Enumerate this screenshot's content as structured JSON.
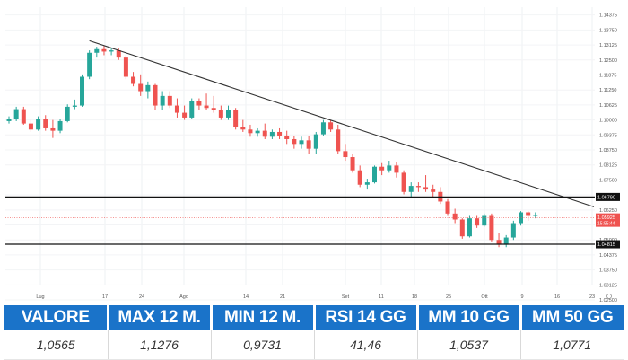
{
  "chart_data": {
    "type": "candlestick",
    "x_tick_labels": [
      "Lug",
      "17",
      "24",
      "Ago",
      "14",
      "21",
      "Set",
      "11",
      "18",
      "25",
      "Ott",
      "9",
      "16",
      "23"
    ],
    "y_tick_labels": [
      "1.14375",
      "1.13750",
      "1.13125",
      "1.12500",
      "1.11875",
      "1.11250",
      "1.10625",
      "1.10000",
      "1.09375",
      "1.08750",
      "1.08125",
      "1.07500",
      "1.06875",
      "1.06250",
      "1.05625",
      "1.05000",
      "1.04375",
      "1.03750",
      "1.03125",
      "1.02500"
    ],
    "ylim": [
      1.031,
      1.147
    ],
    "candles": [
      {
        "o": 1.0995,
        "h": 1.1015,
        "l": 1.0985,
        "c": 1.1005
      },
      {
        "o": 1.1005,
        "h": 1.1055,
        "l": 1.0995,
        "c": 1.1045
      },
      {
        "o": 1.1045,
        "h": 1.1055,
        "l": 1.098,
        "c": 1.0985
      },
      {
        "o": 1.0985,
        "h": 1.1,
        "l": 1.095,
        "c": 1.096
      },
      {
        "o": 1.096,
        "h": 1.1015,
        "l": 1.0955,
        "c": 1.1005
      },
      {
        "o": 1.1005,
        "h": 1.102,
        "l": 1.0955,
        "c": 1.0965
      },
      {
        "o": 1.0965,
        "h": 1.1,
        "l": 1.0925,
        "c": 1.0955
      },
      {
        "o": 1.0955,
        "h": 1.1005,
        "l": 1.0945,
        "c": 1.0995
      },
      {
        "o": 1.0995,
        "h": 1.1065,
        "l": 1.099,
        "c": 1.1055
      },
      {
        "o": 1.1055,
        "h": 1.1085,
        "l": 1.1045,
        "c": 1.106
      },
      {
        "o": 1.106,
        "h": 1.119,
        "l": 1.1055,
        "c": 1.118
      },
      {
        "o": 1.118,
        "h": 1.129,
        "l": 1.117,
        "c": 1.128
      },
      {
        "o": 1.128,
        "h": 1.1305,
        "l": 1.126,
        "c": 1.1295
      },
      {
        "o": 1.1295,
        "h": 1.131,
        "l": 1.127,
        "c": 1.1285
      },
      {
        "o": 1.1285,
        "h": 1.13,
        "l": 1.127,
        "c": 1.129
      },
      {
        "o": 1.129,
        "h": 1.13,
        "l": 1.125,
        "c": 1.126
      },
      {
        "o": 1.126,
        "h": 1.127,
        "l": 1.117,
        "c": 1.118
      },
      {
        "o": 1.118,
        "h": 1.12,
        "l": 1.114,
        "c": 1.115
      },
      {
        "o": 1.115,
        "h": 1.119,
        "l": 1.11,
        "c": 1.112
      },
      {
        "o": 1.112,
        "h": 1.116,
        "l": 1.109,
        "c": 1.1145
      },
      {
        "o": 1.1145,
        "h": 1.115,
        "l": 1.104,
        "c": 1.106
      },
      {
        "o": 1.106,
        "h": 1.112,
        "l": 1.104,
        "c": 1.11
      },
      {
        "o": 1.11,
        "h": 1.112,
        "l": 1.105,
        "c": 1.106
      },
      {
        "o": 1.106,
        "h": 1.109,
        "l": 1.101,
        "c": 1.103
      },
      {
        "o": 1.103,
        "h": 1.106,
        "l": 1.1,
        "c": 1.101
      },
      {
        "o": 1.101,
        "h": 1.109,
        "l": 1.1005,
        "c": 1.108
      },
      {
        "o": 1.108,
        "h": 1.109,
        "l": 1.104,
        "c": 1.106
      },
      {
        "o": 1.106,
        "h": 1.111,
        "l": 1.104,
        "c": 1.105
      },
      {
        "o": 1.105,
        "h": 1.11,
        "l": 1.103,
        "c": 1.104
      },
      {
        "o": 1.104,
        "h": 1.106,
        "l": 1.1,
        "c": 1.101
      },
      {
        "o": 1.101,
        "h": 1.106,
        "l": 1.1,
        "c": 1.104
      },
      {
        "o": 1.104,
        "h": 1.105,
        "l": 1.096,
        "c": 1.097
      },
      {
        "o": 1.097,
        "h": 1.1,
        "l": 1.095,
        "c": 1.096
      },
      {
        "o": 1.096,
        "h": 1.098,
        "l": 1.093,
        "c": 1.0945
      },
      {
        "o": 1.0945,
        "h": 1.0965,
        "l": 1.093,
        "c": 1.0955
      },
      {
        "o": 1.0955,
        "h": 1.0985,
        "l": 1.092,
        "c": 1.093
      },
      {
        "o": 1.093,
        "h": 1.096,
        "l": 1.092,
        "c": 1.095
      },
      {
        "o": 1.095,
        "h": 1.0965,
        "l": 1.092,
        "c": 1.0935
      },
      {
        "o": 1.0935,
        "h": 1.0955,
        "l": 1.09,
        "c": 1.092
      },
      {
        "o": 1.092,
        "h": 1.0935,
        "l": 1.088,
        "c": 1.09
      },
      {
        "o": 1.09,
        "h": 1.093,
        "l": 1.088,
        "c": 1.0915
      },
      {
        "o": 1.0915,
        "h": 1.0935,
        "l": 1.086,
        "c": 1.088
      },
      {
        "o": 1.088,
        "h": 1.095,
        "l": 1.086,
        "c": 1.094
      },
      {
        "o": 1.094,
        "h": 1.1,
        "l": 1.0935,
        "c": 1.099
      },
      {
        "o": 1.099,
        "h": 1.1,
        "l": 1.095,
        "c": 1.096
      },
      {
        "o": 1.096,
        "h": 1.098,
        "l": 1.086,
        "c": 1.087
      },
      {
        "o": 1.087,
        "h": 1.09,
        "l": 1.083,
        "c": 1.0845
      },
      {
        "o": 1.0845,
        "h": 1.086,
        "l": 1.078,
        "c": 1.079
      },
      {
        "o": 1.079,
        "h": 1.081,
        "l": 1.072,
        "c": 1.073
      },
      {
        "o": 1.073,
        "h": 1.0755,
        "l": 1.071,
        "c": 1.074
      },
      {
        "o": 1.074,
        "h": 1.081,
        "l": 1.0735,
        "c": 1.0805
      },
      {
        "o": 1.0805,
        "h": 1.082,
        "l": 1.077,
        "c": 1.079
      },
      {
        "o": 1.079,
        "h": 1.083,
        "l": 1.078,
        "c": 1.081
      },
      {
        "o": 1.081,
        "h": 1.0825,
        "l": 1.076,
        "c": 1.078
      },
      {
        "o": 1.078,
        "h": 1.079,
        "l": 1.069,
        "c": 1.07
      },
      {
        "o": 1.07,
        "h": 1.074,
        "l": 1.068,
        "c": 1.0725
      },
      {
        "o": 1.0725,
        "h": 1.074,
        "l": 1.07,
        "c": 1.072
      },
      {
        "o": 1.072,
        "h": 1.077,
        "l": 1.07,
        "c": 1.071
      },
      {
        "o": 1.071,
        "h": 1.073,
        "l": 1.068,
        "c": 1.07
      },
      {
        "o": 1.07,
        "h": 1.072,
        "l": 1.065,
        "c": 1.066
      },
      {
        "o": 1.066,
        "h": 1.067,
        "l": 1.06,
        "c": 1.061
      },
      {
        "o": 1.061,
        "h": 1.063,
        "l": 1.057,
        "c": 1.0585
      },
      {
        "o": 1.0585,
        "h": 1.059,
        "l": 1.0505,
        "c": 1.0515
      },
      {
        "o": 1.0515,
        "h": 1.06,
        "l": 1.051,
        "c": 1.059
      },
      {
        "o": 1.059,
        "h": 1.06,
        "l": 1.055,
        "c": 1.056
      },
      {
        "o": 1.056,
        "h": 1.061,
        "l": 1.0555,
        "c": 1.06
      },
      {
        "o": 1.06,
        "h": 1.061,
        "l": 1.049,
        "c": 1.05
      },
      {
        "o": 1.05,
        "h": 1.053,
        "l": 1.047,
        "c": 1.048
      },
      {
        "o": 1.048,
        "h": 1.052,
        "l": 1.047,
        "c": 1.051
      },
      {
        "o": 1.051,
        "h": 1.058,
        "l": 1.05,
        "c": 1.057
      },
      {
        "o": 1.057,
        "h": 1.062,
        "l": 1.056,
        "c": 1.0615
      },
      {
        "o": 1.0615,
        "h": 1.062,
        "l": 1.058,
        "c": 1.06
      },
      {
        "o": 1.06,
        "h": 1.0615,
        "l": 1.059,
        "c": 1.0605
      }
    ],
    "trendline": {
      "from": {
        "candle": 11,
        "price": 1.133
      },
      "to": {
        "candle": 80,
        "price": 1.0638
      }
    },
    "horizontal_levels": [
      {
        "price": 1.0679,
        "label": "1.06790"
      },
      {
        "price": 1.0482,
        "label": "1.04815"
      }
    ],
    "current_price": {
      "price": 1.0592,
      "label": "1.05925",
      "sublabel": "15:55:44"
    },
    "colors": {
      "up": "#26a69a",
      "down": "#ef5350",
      "trendline": "#333333",
      "level": "#111111",
      "current": "#ef5350"
    }
  },
  "stats": {
    "headers": [
      "VALORE",
      "MAX 12 M.",
      "MIN 12 M.",
      "RSI 14 GG",
      "MM 10 GG",
      "MM 50 GG"
    ],
    "values": [
      "1,0565",
      "1,1276",
      "0,9731",
      "41,46",
      "1,0537",
      "1,0771"
    ]
  },
  "colors": {
    "header_bg": "#1a73c9",
    "header_text": "#ffffff"
  }
}
